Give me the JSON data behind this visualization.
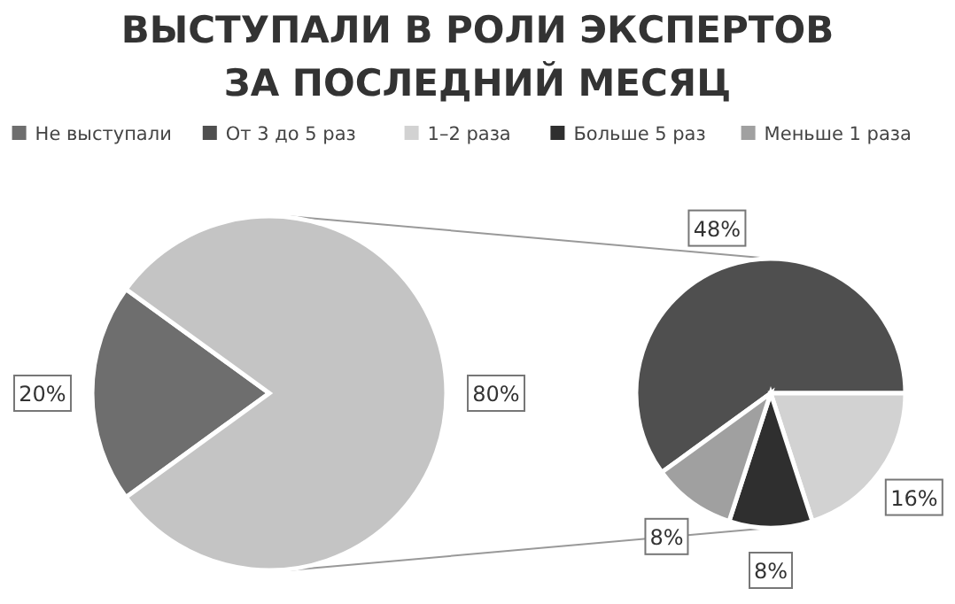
{
  "chart_data": [
    {
      "type": "pie",
      "title": "ВЫСТУПАЛИ В РОЛИ ЭКСПЕРТОВ\nЗА ПОСЛЕДНИЙ МЕСЯЦ",
      "legend": "top",
      "categories": [
        "Не выступали",
        null
      ],
      "values": [
        20,
        80
      ],
      "colors": [
        "#6e6e6e",
        "#c4c4c4"
      ],
      "value_labels": [
        "20%",
        "80%"
      ]
    },
    {
      "type": "pie",
      "legend": "top",
      "categories": [
        "От 3 до 5 раз",
        "1–2 раза",
        "Больше 5 раз",
        "Меньше 1 раза"
      ],
      "values": [
        48,
        16,
        8,
        8
      ],
      "colors": [
        "#4f4f4f",
        "#d2d2d2",
        "#2f2f2f",
        "#a0a0a0"
      ],
      "value_labels": [
        "48%",
        "16%",
        "8%",
        "8%"
      ]
    }
  ]
}
